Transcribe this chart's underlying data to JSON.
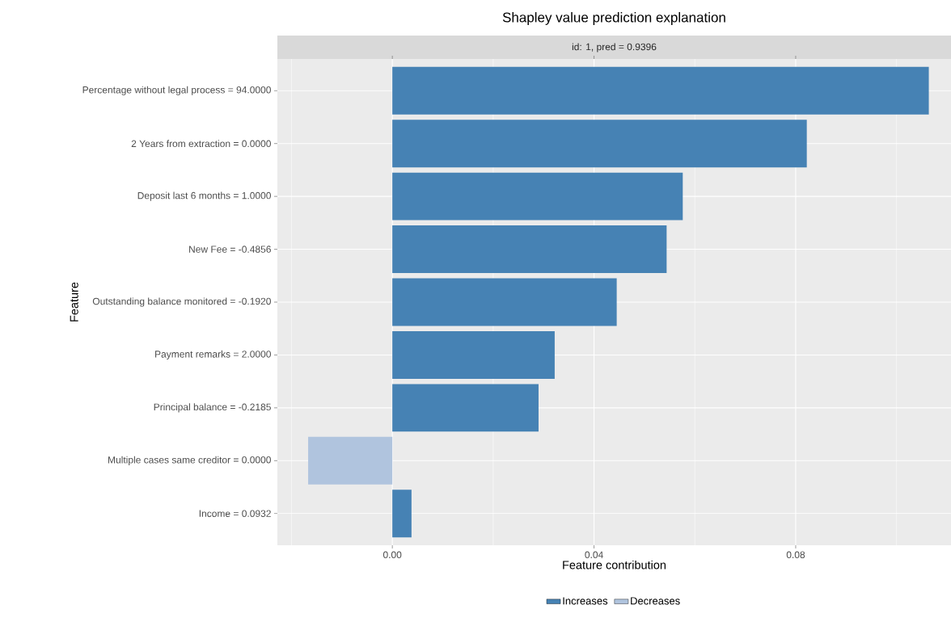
{
  "chart_data": {
    "type": "bar",
    "orientation": "horizontal",
    "title": "Shapley value prediction explanation",
    "subtitle": "id: 1, pred = 0.9396",
    "xlabel": "Feature contribution",
    "ylabel": "Feature",
    "categories": [
      "Percentage without legal process = 94.0000",
      "2 Years from extraction =  0.0000",
      "Deposit last 6 months =  1.0000",
      "New Fee = -0.4856",
      "Outstanding balance monitored = -0.1920",
      "Payment remarks =  2.0000",
      "Principal balance = -0.2185",
      "Multiple cases same creditor =  0.0000",
      "Income =  0.0932"
    ],
    "series": [
      {
        "name": "Increases",
        "color": "#4682b4",
        "values": [
          0.1064,
          0.0822,
          0.0576,
          0.0544,
          0.0445,
          0.0322,
          0.029,
          null,
          0.0038
        ]
      },
      {
        "name": "Decreases",
        "color": "#b0c4de",
        "values": [
          null,
          null,
          null,
          null,
          null,
          null,
          null,
          -0.0167,
          null
        ]
      }
    ],
    "xlim": [
      -0.0228,
      0.1108
    ],
    "xticks": [
      {
        "value": -0.02,
        "label": null
      },
      {
        "value": 0,
        "label": "0.00"
      },
      {
        "value": 0.02,
        "label": null
      },
      {
        "value": 0.04,
        "label": "0.04"
      },
      {
        "value": 0.06,
        "label": null
      },
      {
        "value": 0.08,
        "label": "0.08"
      },
      {
        "value": 0.1,
        "label": null
      }
    ],
    "grid": true,
    "legend": "bottom"
  }
}
